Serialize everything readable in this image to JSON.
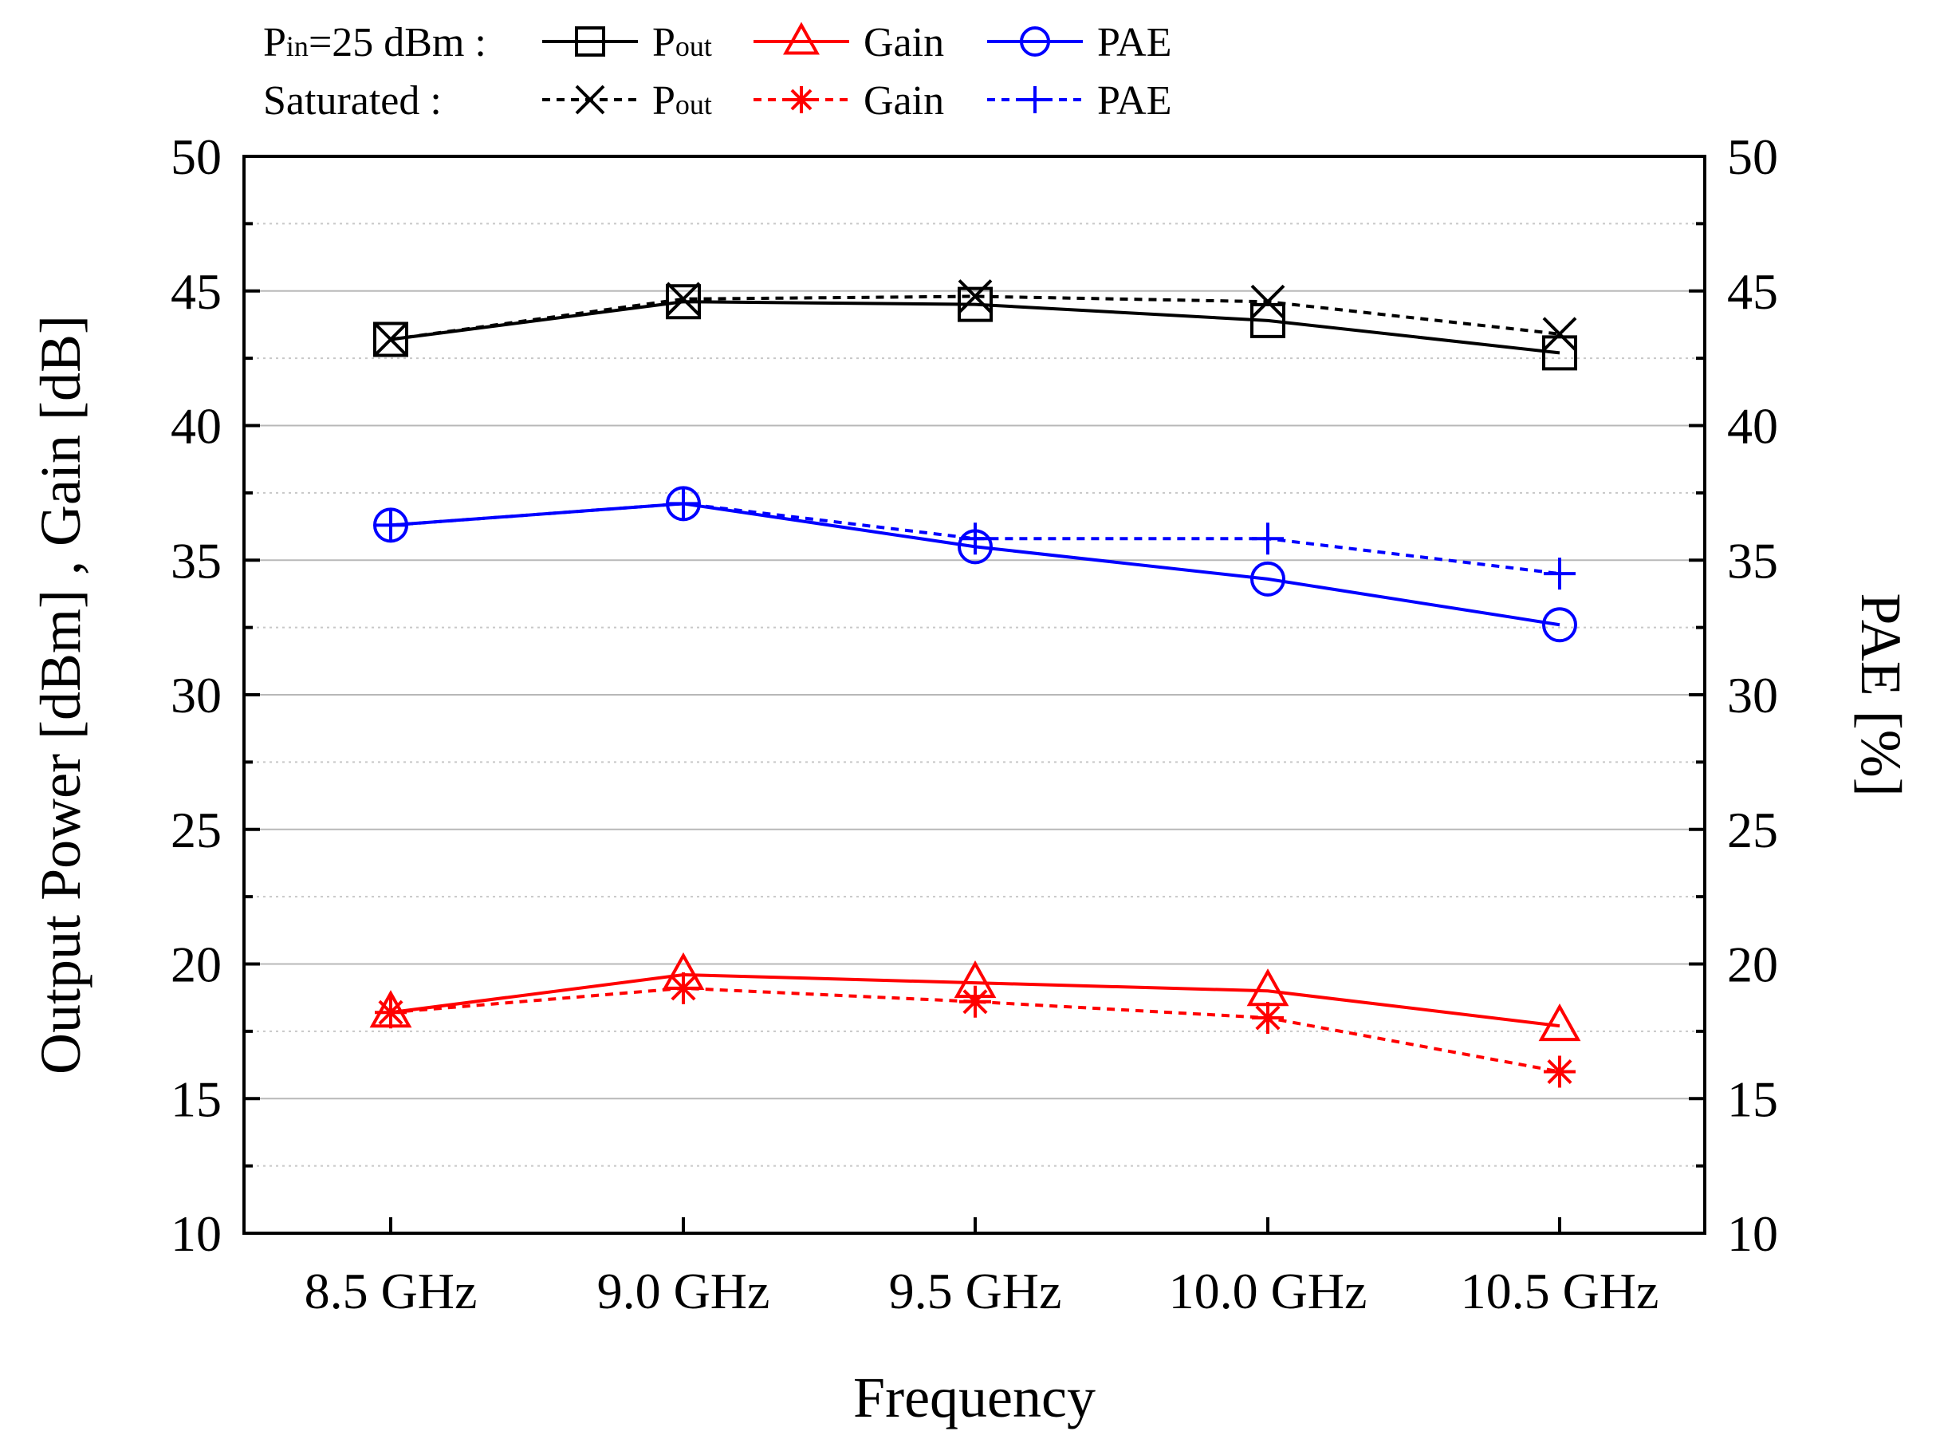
{
  "chart_data": {
    "type": "line",
    "categories": [
      "8.5 GHz",
      "9.0 GHz",
      "9.5 GHz",
      "10.0 GHz",
      "10.5 GHz"
    ],
    "xlabel": "Frequency",
    "ylabel": "Output Power [dBm] , Gain [dB]",
    "y2label": "PAE [%]",
    "ylim": [
      10,
      50
    ],
    "y2lim": [
      10,
      50
    ],
    "yticks": [
      "10",
      "15",
      "20",
      "25",
      "30",
      "35",
      "40",
      "45",
      "50"
    ],
    "y2ticks": [
      "10",
      "15",
      "20",
      "25",
      "30",
      "35",
      "40",
      "45",
      "50"
    ],
    "grid": true,
    "legend": {
      "position": "top",
      "row1_label_main": "P",
      "row1_label_sub": "in",
      "row1_label_rest": "=25 dBm :",
      "row2_label": "Saturated :",
      "pout_main": "P",
      "pout_sub": "out",
      "gain": "Gain",
      "pae": "PAE"
    },
    "series": [
      {
        "name": "Pout (Pin=25 dBm)",
        "group": "pin25",
        "label_key": "pout",
        "color": "#000000",
        "dashed": false,
        "marker": "square",
        "values": [
          43.2,
          44.6,
          44.5,
          43.9,
          42.7
        ]
      },
      {
        "name": "Gain (Pin=25 dBm)",
        "group": "pin25",
        "label_key": "gain",
        "color": "#ff0000",
        "dashed": false,
        "marker": "triangle",
        "values": [
          18.2,
          19.6,
          19.3,
          19.0,
          17.7
        ]
      },
      {
        "name": "PAE (Pin=25 dBm)",
        "group": "pin25",
        "label_key": "pae",
        "color": "#0000ff",
        "dashed": false,
        "marker": "circle",
        "values": [
          36.3,
          37.1,
          35.5,
          34.3,
          32.6
        ]
      },
      {
        "name": "Pout (Saturated)",
        "group": "sat",
        "label_key": "pout",
        "color": "#000000",
        "dashed": true,
        "marker": "x",
        "values": [
          43.2,
          44.7,
          44.8,
          44.6,
          43.4
        ]
      },
      {
        "name": "Gain (Saturated)",
        "group": "sat",
        "label_key": "gain",
        "color": "#ff0000",
        "dashed": true,
        "marker": "asterisk",
        "values": [
          18.2,
          19.1,
          18.6,
          18.0,
          16.0
        ]
      },
      {
        "name": "PAE (Saturated)",
        "group": "sat",
        "label_key": "pae",
        "color": "#0000ff",
        "dashed": true,
        "marker": "plus",
        "values": [
          36.3,
          37.1,
          35.8,
          35.8,
          34.5
        ]
      }
    ]
  }
}
